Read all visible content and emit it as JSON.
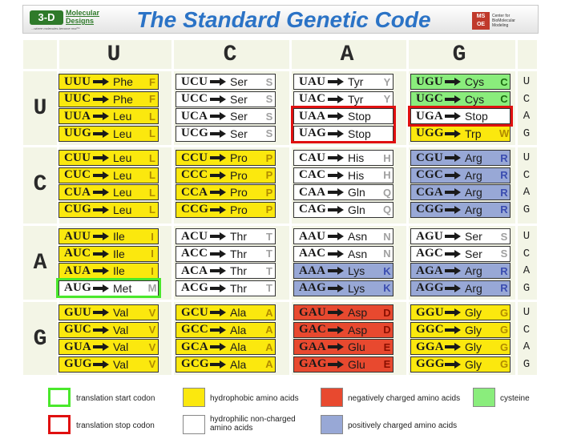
{
  "header": {
    "title": "The Standard Genetic Code",
    "logo_left": {
      "mark": "3-D",
      "name": "Molecular Designs",
      "tagline": "...where molecules become real™"
    },
    "logo_right": {
      "mark": "MS OE",
      "text": "Center for BioMolecular Modeling"
    }
  },
  "columns": [
    "U",
    "C",
    "A",
    "G"
  ],
  "rows": [
    "U",
    "C",
    "A",
    "G"
  ],
  "third_positions": [
    "U",
    "C",
    "A",
    "G"
  ],
  "groups": [
    [
      [
        {
          "codon": "UUU",
          "aa": "Phe",
          "code": "F",
          "color": "yellow"
        },
        {
          "codon": "UUC",
          "aa": "Phe",
          "code": "F",
          "color": "yellow"
        },
        {
          "codon": "UUA",
          "aa": "Leu",
          "code": "L",
          "color": "yellow"
        },
        {
          "codon": "UUG",
          "aa": "Leu",
          "code": "L",
          "color": "yellow"
        }
      ],
      [
        {
          "codon": "UCU",
          "aa": "Ser",
          "code": "S",
          "color": "white"
        },
        {
          "codon": "UCC",
          "aa": "Ser",
          "code": "S",
          "color": "white"
        },
        {
          "codon": "UCA",
          "aa": "Ser",
          "code": "S",
          "color": "white"
        },
        {
          "codon": "UCG",
          "aa": "Ser",
          "code": "S",
          "color": "white"
        }
      ],
      [
        {
          "codon": "UAU",
          "aa": "Tyr",
          "code": "Y",
          "color": "white"
        },
        {
          "codon": "UAC",
          "aa": "Tyr",
          "code": "Y",
          "color": "white"
        },
        {
          "codon": "UAA",
          "aa": "Stop",
          "code": "",
          "color": "white",
          "frame": "stop"
        },
        {
          "codon": "UAG",
          "aa": "Stop",
          "code": "",
          "color": "white",
          "frame": "stop"
        }
      ],
      [
        {
          "codon": "UGU",
          "aa": "Cys",
          "code": "C",
          "color": "green"
        },
        {
          "codon": "UGC",
          "aa": "Cys",
          "code": "C",
          "color": "green"
        },
        {
          "codon": "UGA",
          "aa": "Stop",
          "code": "",
          "color": "white",
          "frame": "stop"
        },
        {
          "codon": "UGG",
          "aa": "Trp",
          "code": "W",
          "color": "yellow"
        }
      ]
    ],
    [
      [
        {
          "codon": "CUU",
          "aa": "Leu",
          "code": "L",
          "color": "yellow"
        },
        {
          "codon": "CUC",
          "aa": "Leu",
          "code": "L",
          "color": "yellow"
        },
        {
          "codon": "CUA",
          "aa": "Leu",
          "code": "L",
          "color": "yellow"
        },
        {
          "codon": "CUG",
          "aa": "Leu",
          "code": "L",
          "color": "yellow"
        }
      ],
      [
        {
          "codon": "CCU",
          "aa": "Pro",
          "code": "P",
          "color": "yellow"
        },
        {
          "codon": "CCC",
          "aa": "Pro",
          "code": "P",
          "color": "yellow"
        },
        {
          "codon": "CCA",
          "aa": "Pro",
          "code": "P",
          "color": "yellow"
        },
        {
          "codon": "CCG",
          "aa": "Pro",
          "code": "P",
          "color": "yellow"
        }
      ],
      [
        {
          "codon": "CAU",
          "aa": "His",
          "code": "H",
          "color": "white"
        },
        {
          "codon": "CAC",
          "aa": "His",
          "code": "H",
          "color": "white"
        },
        {
          "codon": "CAA",
          "aa": "Gln",
          "code": "Q",
          "color": "white"
        },
        {
          "codon": "CAG",
          "aa": "Gln",
          "code": "Q",
          "color": "white"
        }
      ],
      [
        {
          "codon": "CGU",
          "aa": "Arg",
          "code": "R",
          "color": "blue"
        },
        {
          "codon": "CGC",
          "aa": "Arg",
          "code": "R",
          "color": "blue"
        },
        {
          "codon": "CGA",
          "aa": "Arg",
          "code": "R",
          "color": "blue"
        },
        {
          "codon": "CGG",
          "aa": "Arg",
          "code": "R",
          "color": "blue"
        }
      ]
    ],
    [
      [
        {
          "codon": "AUU",
          "aa": "Ile",
          "code": "I",
          "color": "yellow"
        },
        {
          "codon": "AUC",
          "aa": "Ile",
          "code": "I",
          "color": "yellow"
        },
        {
          "codon": "AUA",
          "aa": "Ile",
          "code": "I",
          "color": "yellow"
        },
        {
          "codon": "AUG",
          "aa": "Met",
          "code": "M",
          "color": "white",
          "frame": "start"
        }
      ],
      [
        {
          "codon": "ACU",
          "aa": "Thr",
          "code": "T",
          "color": "white"
        },
        {
          "codon": "ACC",
          "aa": "Thr",
          "code": "T",
          "color": "white"
        },
        {
          "codon": "ACA",
          "aa": "Thr",
          "code": "T",
          "color": "white"
        },
        {
          "codon": "ACG",
          "aa": "Thr",
          "code": "T",
          "color": "white"
        }
      ],
      [
        {
          "codon": "AAU",
          "aa": "Asn",
          "code": "N",
          "color": "white"
        },
        {
          "codon": "AAC",
          "aa": "Asn",
          "code": "N",
          "color": "white"
        },
        {
          "codon": "AAA",
          "aa": "Lys",
          "code": "K",
          "color": "blue"
        },
        {
          "codon": "AAG",
          "aa": "Lys",
          "code": "K",
          "color": "blue"
        }
      ],
      [
        {
          "codon": "AGU",
          "aa": "Ser",
          "code": "S",
          "color": "white"
        },
        {
          "codon": "AGC",
          "aa": "Ser",
          "code": "S",
          "color": "white"
        },
        {
          "codon": "AGA",
          "aa": "Arg",
          "code": "R",
          "color": "blue"
        },
        {
          "codon": "AGG",
          "aa": "Arg",
          "code": "R",
          "color": "blue"
        }
      ]
    ],
    [
      [
        {
          "codon": "GUU",
          "aa": "Val",
          "code": "V",
          "color": "yellow"
        },
        {
          "codon": "GUC",
          "aa": "Val",
          "code": "V",
          "color": "yellow"
        },
        {
          "codon": "GUA",
          "aa": "Val",
          "code": "V",
          "color": "yellow"
        },
        {
          "codon": "GUG",
          "aa": "Val",
          "code": "V",
          "color": "yellow"
        }
      ],
      [
        {
          "codon": "GCU",
          "aa": "Ala",
          "code": "A",
          "color": "yellow"
        },
        {
          "codon": "GCC",
          "aa": "Ala",
          "code": "A",
          "color": "yellow"
        },
        {
          "codon": "GCA",
          "aa": "Ala",
          "code": "A",
          "color": "yellow"
        },
        {
          "codon": "GCG",
          "aa": "Ala",
          "code": "A",
          "color": "yellow"
        }
      ],
      [
        {
          "codon": "GAU",
          "aa": "Asp",
          "code": "D",
          "color": "red"
        },
        {
          "codon": "GAC",
          "aa": "Asp",
          "code": "D",
          "color": "red"
        },
        {
          "codon": "GAA",
          "aa": "Glu",
          "code": "E",
          "color": "red"
        },
        {
          "codon": "GAG",
          "aa": "Glu",
          "code": "E",
          "color": "red"
        }
      ],
      [
        {
          "codon": "GGU",
          "aa": "Gly",
          "code": "G",
          "color": "yellow"
        },
        {
          "codon": "GGC",
          "aa": "Gly",
          "code": "G",
          "color": "yellow"
        },
        {
          "codon": "GGA",
          "aa": "Gly",
          "code": "G",
          "color": "yellow"
        },
        {
          "codon": "GGG",
          "aa": "Gly",
          "code": "G",
          "color": "yellow"
        }
      ]
    ]
  ],
  "legend": [
    {
      "label": "translation start codon",
      "swatch": "start"
    },
    {
      "label": "hydrophobic amino acids",
      "swatch": "yellow"
    },
    {
      "label": "negatively charged amino acids",
      "swatch": "red"
    },
    {
      "label": "cysteine",
      "swatch": "green"
    },
    {
      "label": "translation stop codon",
      "swatch": "stop"
    },
    {
      "label": "hydrophilic non-charged amino acids",
      "swatch": "white"
    },
    {
      "label": "positively charged amino acids",
      "swatch": "blue"
    }
  ],
  "colors": {
    "yellow": "#fbe80e",
    "white": "#ffffff",
    "red": "#e8492f",
    "blue": "#98a8d6",
    "green": "#8aed7c",
    "stop": "#e01010",
    "start": "#4ae82c",
    "title": "#2b73c6"
  }
}
